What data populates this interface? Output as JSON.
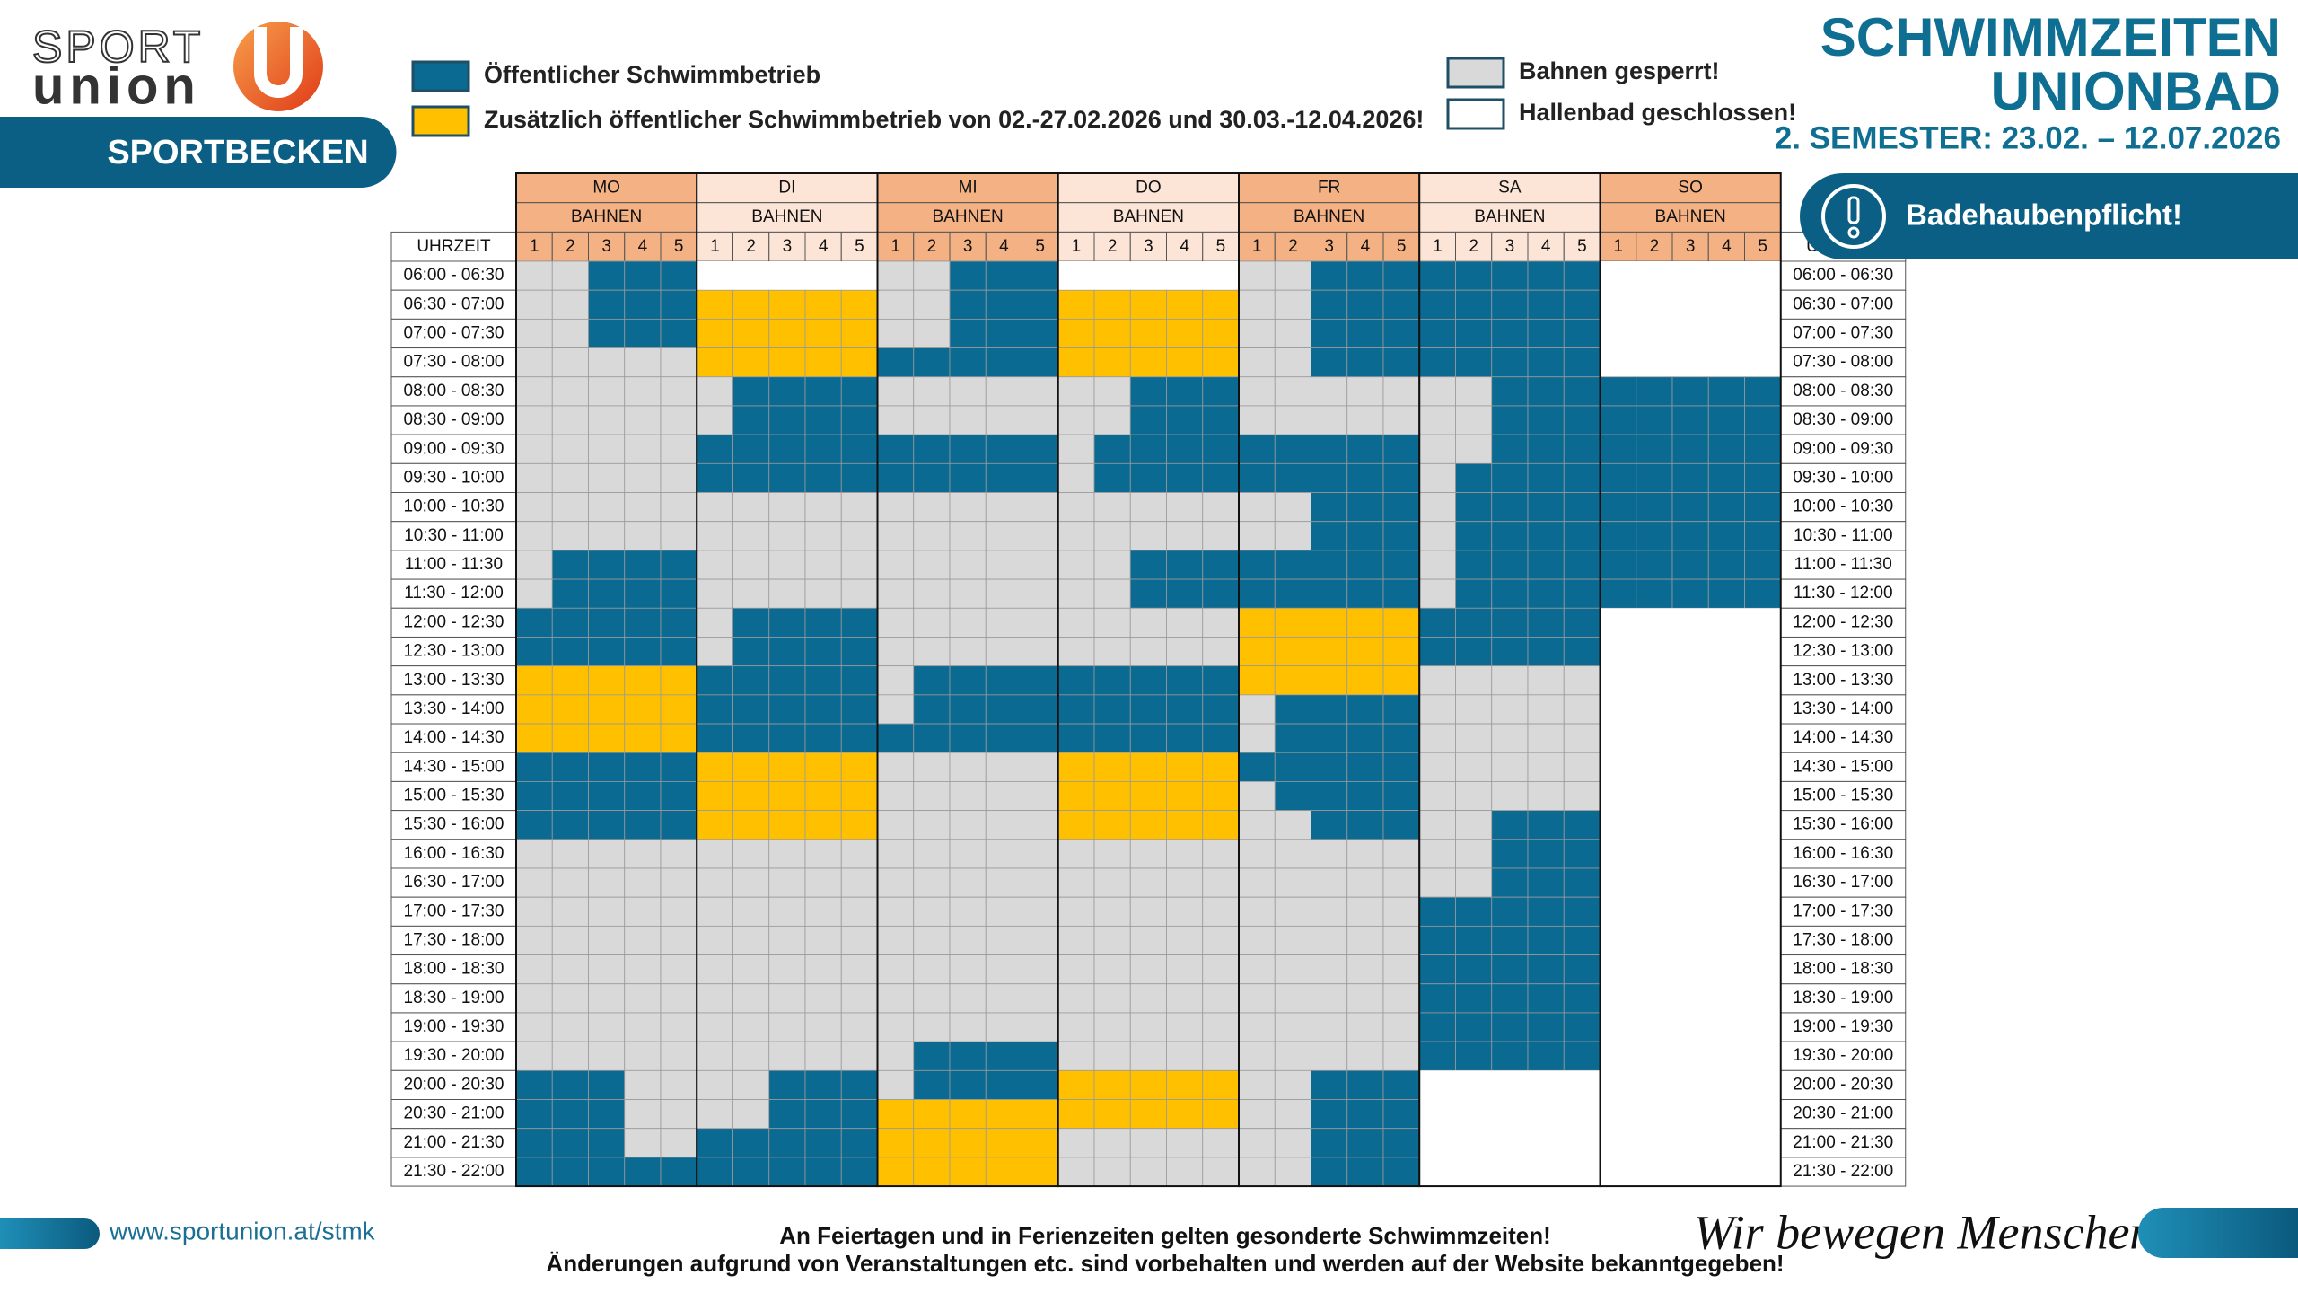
{
  "logo": {
    "sport": "SPORT",
    "union": "union"
  },
  "section": "SPORTBECKEN",
  "legend": [
    {
      "code": "B",
      "color": "#0b6a91",
      "label": "Öffentlicher Schwimmbetrieb"
    },
    {
      "code": "Y",
      "color": "#ffc000",
      "label": "Zusätzlich öffentlicher Schwimmbetrieb von 02.-27.02.2026 und 30.03.-12.04.2026!"
    },
    {
      "code": "G",
      "color": "#d9d9d9",
      "label": "Bahnen gesperrt!"
    },
    {
      "code": "W",
      "color": "#ffffff",
      "label": "Hallenbad geschlossen!"
    }
  ],
  "header": {
    "title_1": "SCHWIMMZEITEN",
    "title_2": "UNIONBAD",
    "subtitle": "2. SEMESTER: 23.02. – 12.07.2026",
    "notice": "Badehaubenpflicht!"
  },
  "table": {
    "time_header": "UHRZEIT",
    "lanes_label": "BAHNEN",
    "lanes": [
      "1",
      "2",
      "3",
      "4",
      "5"
    ],
    "times": [
      "06:00 - 06:30",
      "06:30 - 07:00",
      "07:00 - 07:30",
      "07:30 - 08:00",
      "08:00 - 08:30",
      "08:30 - 09:00",
      "09:00 - 09:30",
      "09:30 - 10:00",
      "10:00 - 10:30",
      "10:30 - 11:00",
      "11:00 - 11:30",
      "11:30 - 12:00",
      "12:00 - 12:30",
      "12:30 - 13:00",
      "13:00 - 13:30",
      "13:30 - 14:00",
      "14:00 - 14:30",
      "14:30 - 15:00",
      "15:00 - 15:30",
      "15:30 - 16:00",
      "16:00 - 16:30",
      "16:30 - 17:00",
      "17:00 - 17:30",
      "17:30 - 18:00",
      "18:00 - 18:30",
      "18:30 - 19:00",
      "19:00 - 19:30",
      "19:30 - 20:00",
      "20:00 - 20:30",
      "20:30 - 21:00",
      "21:00 - 21:30",
      "21:30 - 22:00"
    ],
    "days": [
      {
        "name": "MO",
        "header_color": "#f4b183",
        "slots": [
          "GGBBB",
          "GGBBB",
          "GGBBB",
          "GGGGG",
          "GGGGG",
          "GGGGG",
          "GGGGG",
          "GGGGG",
          "GGGGG",
          "GGGGG",
          "GBBBB",
          "GBBBB",
          "BBBBB",
          "BBBBB",
          "YYYYY",
          "YYYYY",
          "YYYYY",
          "BBBBB",
          "BBBBB",
          "BBBBB",
          "GGGGG",
          "GGGGG",
          "GGGGG",
          "GGGGG",
          "GGGGG",
          "GGGGG",
          "GGGGG",
          "GGGGG",
          "BBBGG",
          "BBBGG",
          "BBBGG",
          "BBBBB"
        ]
      },
      {
        "name": "DI",
        "header_color": "#fce4d6",
        "slots": [
          "WWWWW",
          "YYYYY",
          "YYYYY",
          "YYYYY",
          "GBBBB",
          "GBBBB",
          "BBBBB",
          "BBBBB",
          "GGGGG",
          "GGGGG",
          "GGGGG",
          "GGGGG",
          "GBBBB",
          "GBBBB",
          "BBBBB",
          "BBBBB",
          "BBBBB",
          "YYYYY",
          "YYYYY",
          "YYYYY",
          "GGGGG",
          "GGGGG",
          "GGGGG",
          "GGGGG",
          "GGGGG",
          "GGGGG",
          "GGGGG",
          "GGGGG",
          "GGBBB",
          "GGBBB",
          "BBBBB",
          "BBBBB"
        ]
      },
      {
        "name": "MI",
        "header_color": "#f4b183",
        "slots": [
          "GGBBB",
          "GGBBB",
          "GGBBB",
          "BBBBB",
          "GGGGG",
          "GGGGG",
          "BBBBB",
          "BBBBB",
          "GGGGG",
          "GGGGG",
          "GGGGG",
          "GGGGG",
          "GGGGG",
          "GGGGG",
          "GBBBB",
          "GBBBB",
          "BBBBB",
          "GGGGG",
          "GGGGG",
          "GGGGG",
          "GGGGG",
          "GGGGG",
          "GGGGG",
          "GGGGG",
          "GGGGG",
          "GGGGG",
          "GGGGG",
          "GBBBB",
          "GBBBB",
          "YYYYY",
          "YYYYY",
          "YYYYY"
        ]
      },
      {
        "name": "DO",
        "header_color": "#fce4d6",
        "slots": [
          "WWWWW",
          "YYYYY",
          "YYYYY",
          "YYYYY",
          "GGBBB",
          "GGBBB",
          "GBBBB",
          "GBBBB",
          "GGGGG",
          "GGGGG",
          "GGBBB",
          "GGBBB",
          "GGGGG",
          "GGGGG",
          "BBBBB",
          "BBBBB",
          "BBBBB",
          "YYYYY",
          "YYYYY",
          "YYYYY",
          "GGGGG",
          "GGGGG",
          "GGGGG",
          "GGGGG",
          "GGGGG",
          "GGGGG",
          "GGGGG",
          "GGGGG",
          "YYYYY",
          "YYYYY",
          "GGGGG",
          "GGGGG"
        ]
      },
      {
        "name": "FR",
        "header_color": "#f4b183",
        "slots": [
          "GGBBB",
          "GGBBB",
          "GGBBB",
          "GGBBB",
          "GGGGG",
          "GGGGG",
          "BBBBB",
          "BBBBB",
          "GGBBB",
          "GGBBB",
          "BBBBB",
          "BBBBB",
          "YYYYY",
          "YYYYY",
          "YYYYY",
          "GBBBB",
          "GBBBB",
          "BBBBB",
          "GBBBB",
          "GGBBB",
          "GGGGG",
          "GGGGG",
          "GGGGG",
          "GGGGG",
          "GGGGG",
          "GGGGG",
          "GGGGG",
          "GGGGG",
          "GGBBB",
          "GGBBB",
          "GGBBB",
          "GGBBB"
        ]
      },
      {
        "name": "SA",
        "header_color": "#fce4d6",
        "slots": [
          "BBBBB",
          "BBBBB",
          "BBBBB",
          "BBBBB",
          "GGBBB",
          "GGBBB",
          "GGBBB",
          "GBBBB",
          "GBBBB",
          "GBBBB",
          "GBBBB",
          "GBBBB",
          "BBBBB",
          "BBBBB",
          "GGGGG",
          "GGGGG",
          "GGGGG",
          "GGGGG",
          "GGGGG",
          "GGBBB",
          "GGBBB",
          "GGBBB",
          "BBBBB",
          "BBBBB",
          "BBBBB",
          "BBBBB",
          "BBBBB",
          "BBBBB",
          "WWWWW",
          "WWWWW",
          "WWWWW",
          "WWWWW"
        ]
      },
      {
        "name": "SO",
        "header_color": "#f4b183",
        "slots": [
          "WWWWW",
          "WWWWW",
          "WWWWW",
          "WWWWW",
          "BBBBB",
          "BBBBB",
          "BBBBB",
          "BBBBB",
          "BBBBB",
          "BBBBB",
          "BBBBB",
          "BBBBB",
          "WWWWW",
          "WWWWW",
          "WWWWW",
          "WWWWW",
          "WWWWW",
          "WWWWW",
          "WWWWW",
          "WWWWW",
          "WWWWW",
          "WWWWW",
          "WWWWW",
          "WWWWW",
          "WWWWW",
          "WWWWW",
          "WWWWW",
          "WWWWW",
          "WWWWW",
          "WWWWW",
          "WWWWW",
          "WWWWW"
        ]
      }
    ]
  },
  "footer": {
    "url": "www.sportunion.at/stmk",
    "note_1": "An Feiertagen und in Ferienzeiten gelten gesonderte Schwimmzeiten!",
    "note_2": "Änderungen aufgrund von Veranstaltungen etc. sind vorbehalten und werden auf der Website bekanntgegeben!",
    "slogan": "Wir bewegen Menschen"
  }
}
